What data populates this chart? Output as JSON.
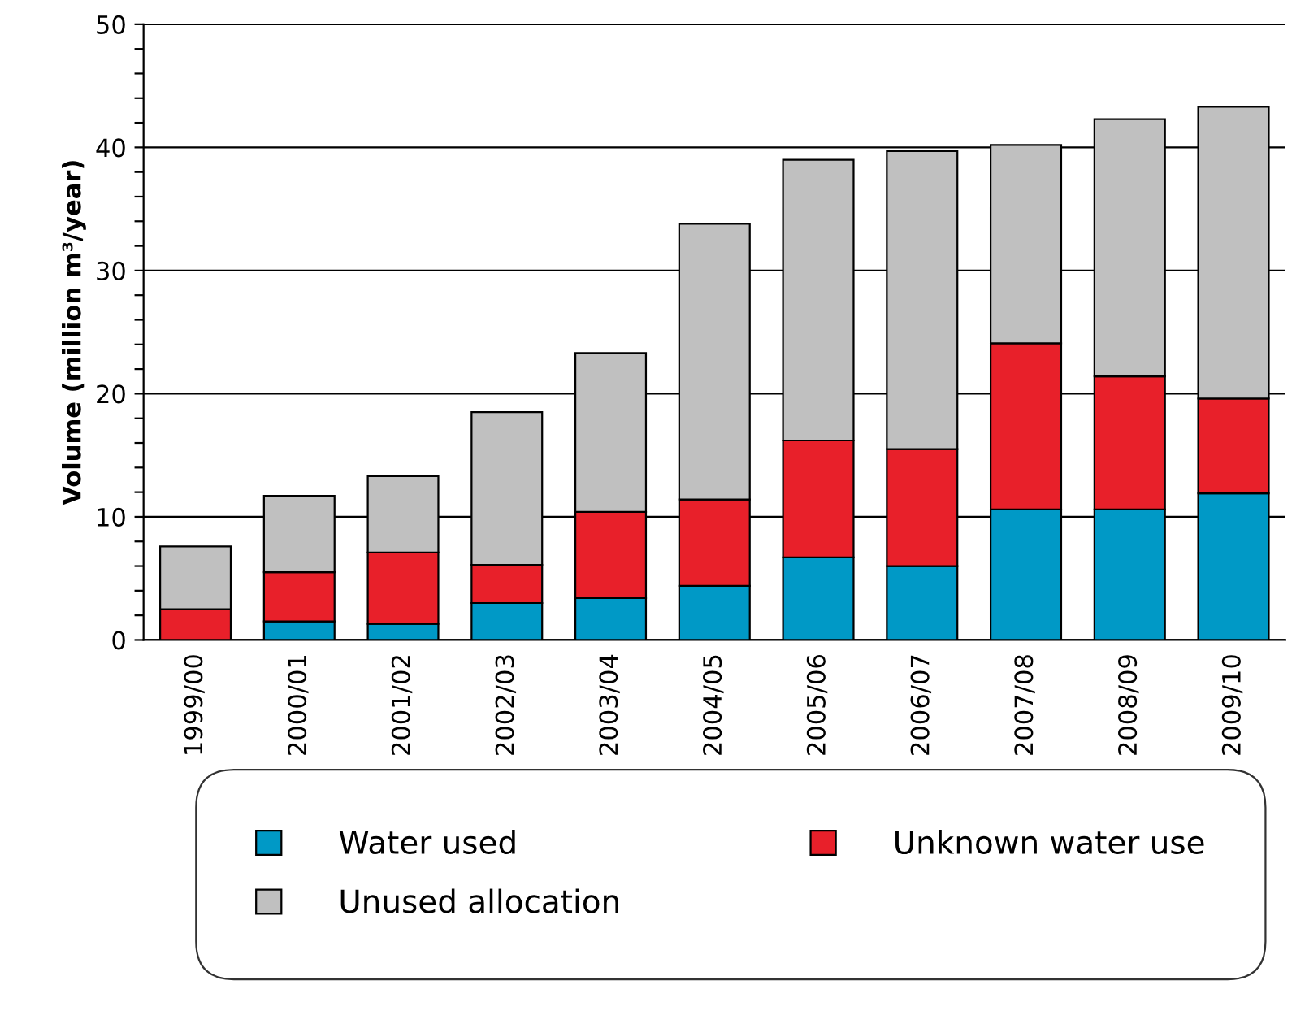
{
  "chart_data": {
    "type": "bar",
    "stacked": true,
    "ylabel": "Volume (million m³/year)",
    "categories": [
      "1999/00",
      "2000/01",
      "2001/02",
      "2002/03",
      "2003/04",
      "2004/05",
      "2005/06",
      "2006/07",
      "2007/08",
      "2008/09",
      "2009/10"
    ],
    "series": [
      {
        "name": "Water used",
        "color": "#0099c6",
        "values": [
          0,
          1.5,
          1.3,
          3.0,
          3.4,
          4.4,
          6.7,
          6.0,
          10.6,
          10.6,
          11.9
        ]
      },
      {
        "name": "Unknown water use",
        "color": "#e8202a",
        "values": [
          2.5,
          4.0,
          5.8,
          3.1,
          7.0,
          7.0,
          9.5,
          9.5,
          13.5,
          10.8,
          7.7
        ]
      },
      {
        "name": "Unused allocation",
        "color": "#c0c0c0",
        "values": [
          5.1,
          6.2,
          6.2,
          12.4,
          12.9,
          22.4,
          22.8,
          24.2,
          16.1,
          20.9,
          23.7
        ]
      }
    ],
    "ylim": [
      0,
      50
    ],
    "yticks": [
      0,
      {
        "value": 2,
        "label": null
      },
      {
        "value": 4,
        "label": null
      },
      {
        "value": 6,
        "label": null
      },
      {
        "value": 8,
        "label": null
      },
      10,
      {
        "value": 12,
        "label": null
      },
      {
        "value": 14,
        "label": null
      },
      {
        "value": 16,
        "label": null
      },
      {
        "value": 18,
        "label": null
      },
      20,
      {
        "value": 22,
        "label": null
      },
      {
        "value": 24,
        "label": null
      },
      {
        "value": 26,
        "label": null
      },
      {
        "value": 28,
        "label": null
      },
      30,
      {
        "value": 32,
        "label": null
      },
      {
        "value": 34,
        "label": null
      },
      {
        "value": 36,
        "label": null
      },
      {
        "value": 38,
        "label": null
      },
      40,
      {
        "value": 42,
        "label": null
      },
      {
        "value": 44,
        "label": null
      },
      {
        "value": 46,
        "label": null
      },
      {
        "value": 48,
        "label": null
      },
      50
    ],
    "grid": "y",
    "legend": "bottom"
  }
}
